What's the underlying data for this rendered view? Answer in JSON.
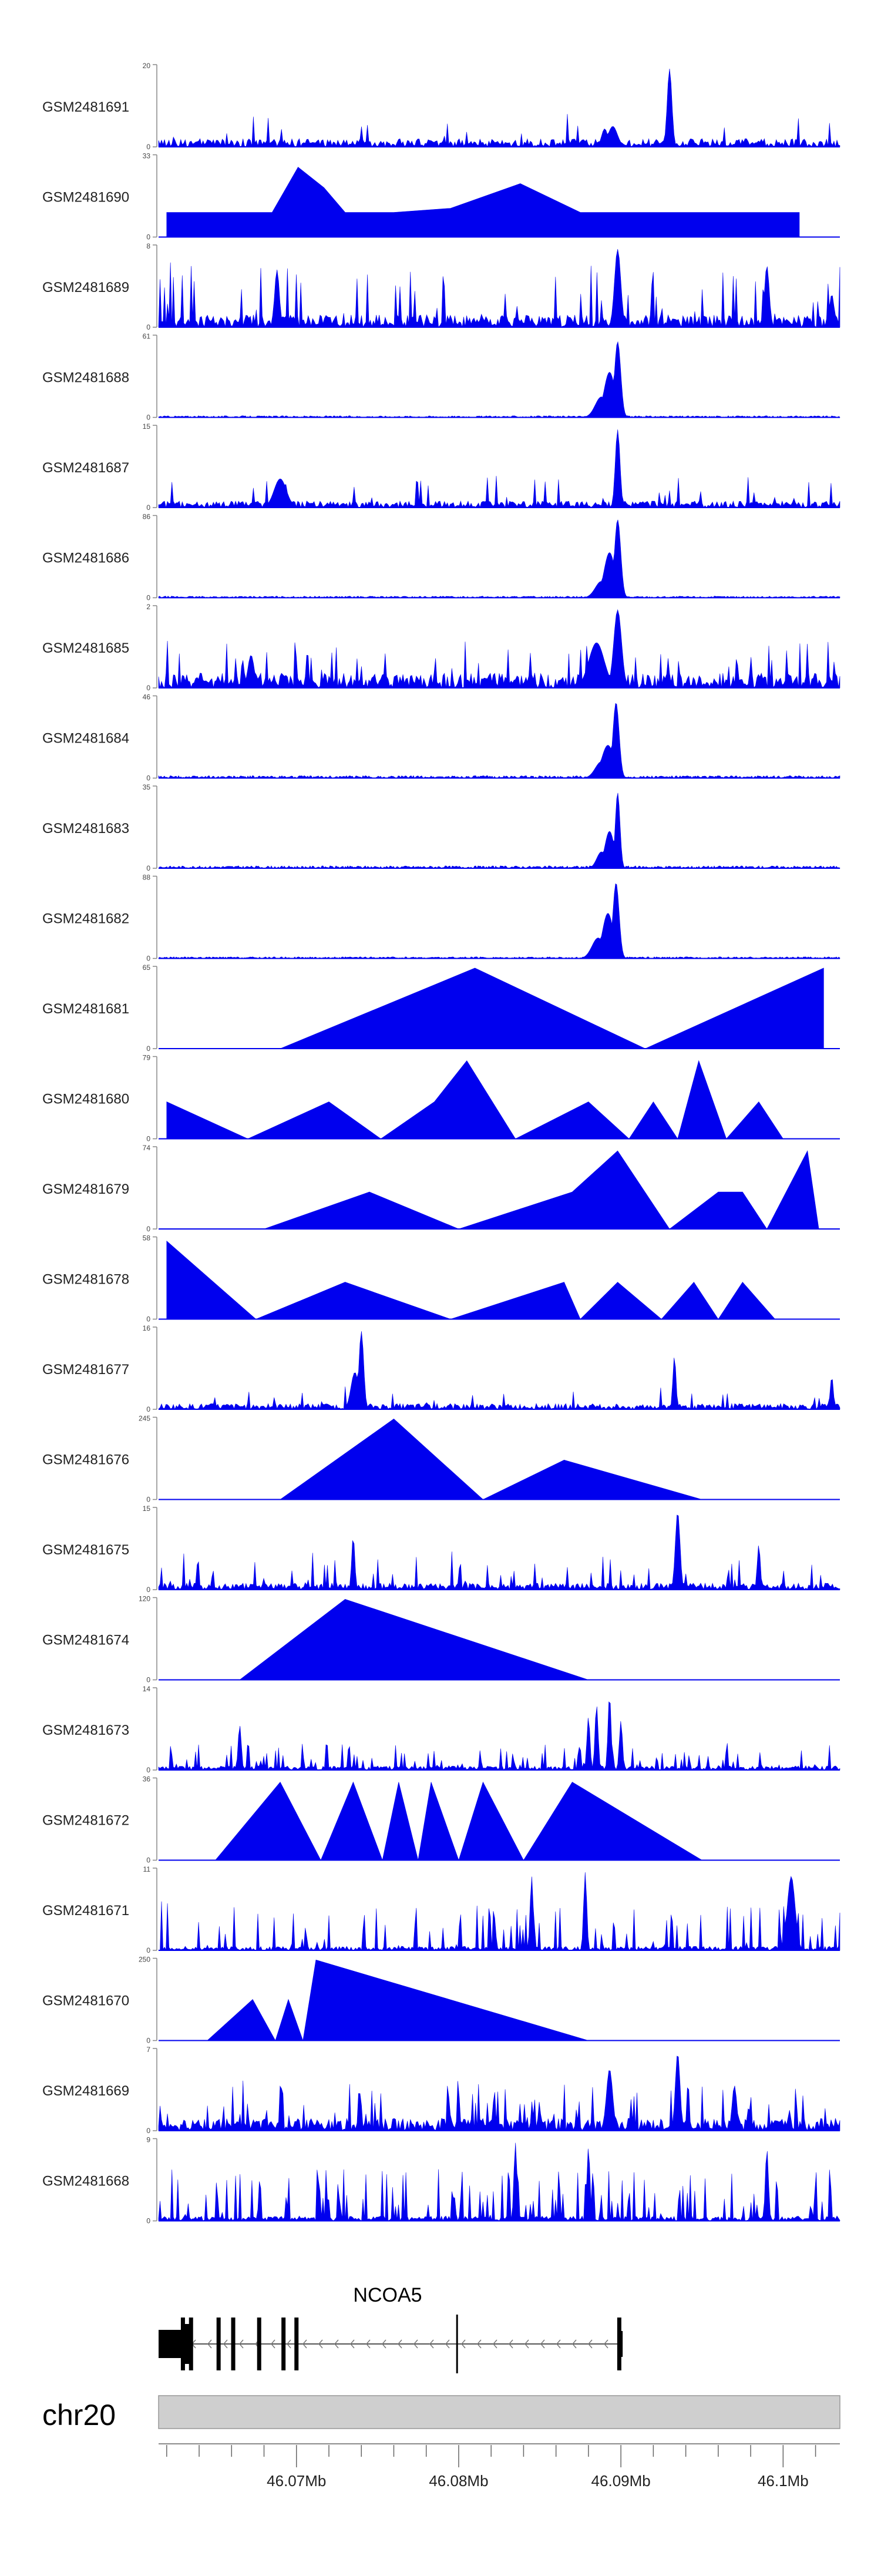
{
  "chart_data": {
    "type": "area",
    "title": "",
    "chromosome": "chr20",
    "xlabel": "",
    "x_range_mb": [
      46.0615,
      46.1035
    ],
    "axis_tick_labels": [
      "46.07Mb",
      "46.08Mb",
      "46.09Mb",
      "46.1Mb"
    ],
    "axis_tick_values": [
      46.07,
      46.08,
      46.09,
      46.1
    ],
    "gene": {
      "name": "NCOA5",
      "strand": "-",
      "start_mb": 46.0615,
      "end_mb": 46.09,
      "exons_mb": [
        46.063,
        46.0635,
        46.0652,
        46.0661,
        46.0677,
        46.0692,
        46.07,
        46.0799,
        46.0899
      ]
    },
    "colors": {
      "signal": "#0000ee",
      "ideogram": "#cfcfcf",
      "axis": "#666666"
    },
    "tracks": [
      {
        "name": "GSM2481691",
        "ymax": "20",
        "ymin": "0",
        "style": "spiky",
        "noise": 0.1,
        "spikeRate": 0.05,
        "spikeMax": 0.35,
        "seed": 91,
        "peaks": [
          [
            46.0895,
            0.25,
            0.0006
          ],
          [
            46.093,
            0.95,
            0.0003
          ],
          [
            46.089,
            0.22,
            0.0004
          ]
        ]
      },
      {
        "name": "GSM2481690",
        "ymax": "33",
        "ymin": "0",
        "style": "tent",
        "seed": 90,
        "apexes": [
          [
            46.062,
            0.3
          ],
          [
            46.0642,
            0.3
          ],
          [
            46.0663,
            0.3
          ],
          [
            46.0685,
            0.3
          ],
          [
            46.0701,
            0.85
          ],
          [
            46.0717,
            0.6
          ],
          [
            46.073,
            0.3
          ],
          [
            46.076,
            0.3
          ],
          [
            46.0795,
            0.35
          ],
          [
            46.0838,
            0.65
          ],
          [
            46.0875,
            0.3
          ],
          [
            46.091,
            0.3
          ],
          [
            46.095,
            0.3
          ],
          [
            46.0985,
            0.3
          ],
          [
            46.101,
            0.3
          ]
        ]
      },
      {
        "name": "GSM2481689",
        "ymax": "8",
        "ymin": "0",
        "style": "spiky",
        "noise": 0.15,
        "spikeRate": 0.1,
        "spikeMax": 0.65,
        "seed": 89,
        "peaks": [
          [
            46.0898,
            0.95,
            0.0004
          ],
          [
            46.099,
            0.75,
            0.0003
          ],
          [
            46.0688,
            0.7,
            0.0003
          ],
          [
            46.103,
            0.4,
            0.0003
          ]
        ]
      },
      {
        "name": "GSM2481688",
        "ymax": "61",
        "ymin": "0",
        "style": "narrow",
        "noise": 0.02,
        "seed": 88,
        "peaks": [
          [
            46.0898,
            0.92,
            0.0004
          ],
          [
            46.0893,
            0.55,
            0.0007
          ],
          [
            46.0888,
            0.25,
            0.0008
          ]
        ]
      },
      {
        "name": "GSM2481687",
        "ymax": "15",
        "ymin": "0",
        "style": "spiky",
        "noise": 0.08,
        "spikeRate": 0.07,
        "spikeMax": 0.35,
        "seed": 87,
        "peaks": [
          [
            46.0898,
            0.95,
            0.0003
          ],
          [
            46.069,
            0.35,
            0.0008
          ]
        ]
      },
      {
        "name": "GSM2481686",
        "ymax": "86",
        "ymin": "0",
        "style": "narrow",
        "noise": 0.02,
        "seed": 86,
        "peaks": [
          [
            46.0898,
            0.95,
            0.0004
          ],
          [
            46.0893,
            0.55,
            0.0007
          ],
          [
            46.0888,
            0.2,
            0.0008
          ]
        ]
      },
      {
        "name": "GSM2481685",
        "ymax": "2",
        "ymin": "0",
        "style": "spiky",
        "noise": 0.18,
        "spikeRate": 0.12,
        "spikeMax": 0.45,
        "seed": 85,
        "peaks": [
          [
            46.0898,
            0.95,
            0.0005
          ],
          [
            46.0885,
            0.55,
            0.001
          ],
          [
            46.0672,
            0.4,
            0.0004
          ]
        ]
      },
      {
        "name": "GSM2481684",
        "ymax": "46",
        "ymin": "0",
        "style": "narrow",
        "noise": 0.03,
        "seed": 84,
        "peaks": [
          [
            46.0897,
            0.92,
            0.0004
          ],
          [
            46.0892,
            0.4,
            0.0008
          ],
          [
            46.0888,
            0.2,
            0.0008
          ]
        ]
      },
      {
        "name": "GSM2481683",
        "ymax": "35",
        "ymin": "0",
        "style": "narrow",
        "noise": 0.03,
        "seed": 83,
        "peaks": [
          [
            46.0898,
            0.92,
            0.0003
          ],
          [
            46.0893,
            0.45,
            0.0006
          ],
          [
            46.0888,
            0.2,
            0.0006
          ]
        ]
      },
      {
        "name": "GSM2481682",
        "ymax": "88",
        "ymin": "0",
        "style": "narrow",
        "noise": 0.02,
        "seed": 82,
        "peaks": [
          [
            46.0897,
            0.92,
            0.0004
          ],
          [
            46.0892,
            0.55,
            0.0007
          ],
          [
            46.0886,
            0.25,
            0.0008
          ]
        ]
      },
      {
        "name": "GSM2481681",
        "ymax": "65",
        "ymin": "0",
        "style": "tent",
        "seed": 81,
        "apexes": [
          [
            46.069,
            0.0
          ],
          [
            46.081,
            0.98
          ],
          [
            46.0915,
            0.0
          ],
          [
            46.1025,
            0.98
          ]
        ]
      },
      {
        "name": "GSM2481680",
        "ymax": "79",
        "ymin": "0",
        "style": "tent",
        "seed": 80,
        "apexes": [
          [
            46.062,
            0.45
          ],
          [
            46.067,
            0.0
          ],
          [
            46.072,
            0.45
          ],
          [
            46.0752,
            0.0
          ],
          [
            46.0785,
            0.45
          ],
          [
            46.0805,
            0.95
          ],
          [
            46.0835,
            0.0
          ],
          [
            46.088,
            0.45
          ],
          [
            46.0905,
            0.0
          ],
          [
            46.092,
            0.45
          ],
          [
            46.0935,
            0.0
          ],
          [
            46.0948,
            0.95
          ],
          [
            46.0965,
            0.0
          ],
          [
            46.0985,
            0.45
          ],
          [
            46.1,
            0.0
          ]
        ]
      },
      {
        "name": "GSM2481679",
        "ymax": "74",
        "ymin": "0",
        "style": "tent",
        "seed": 79,
        "apexes": [
          [
            46.068,
            0.0
          ],
          [
            46.0745,
            0.45
          ],
          [
            46.08,
            0.0
          ],
          [
            46.087,
            0.45
          ],
          [
            46.0898,
            0.95
          ],
          [
            46.093,
            0.0
          ],
          [
            46.096,
            0.45
          ],
          [
            46.0975,
            0.45
          ],
          [
            46.099,
            0.0
          ],
          [
            46.1015,
            0.95
          ],
          [
            46.1022,
            0.0
          ]
        ]
      },
      {
        "name": "GSM2481678",
        "ymax": "58",
        "ymin": "0",
        "style": "tent",
        "seed": 78,
        "apexes": [
          [
            46.062,
            0.95
          ],
          [
            46.0675,
            0.0
          ],
          [
            46.073,
            0.45
          ],
          [
            46.0795,
            0.0
          ],
          [
            46.0865,
            0.45
          ],
          [
            46.0875,
            0.0
          ],
          [
            46.0898,
            0.45
          ],
          [
            46.0925,
            0.0
          ],
          [
            46.0945,
            0.45
          ],
          [
            46.096,
            0.0
          ],
          [
            46.0975,
            0.45
          ],
          [
            46.0995,
            0.0
          ]
        ]
      },
      {
        "name": "GSM2481677",
        "ymax": "16",
        "ymin": "0",
        "style": "spiky",
        "noise": 0.07,
        "spikeRate": 0.05,
        "spikeMax": 0.25,
        "seed": 77,
        "peaks": [
          [
            46.074,
            0.95,
            0.0003
          ],
          [
            46.0736,
            0.45,
            0.0005
          ],
          [
            46.0933,
            0.65,
            0.0002
          ],
          [
            46.103,
            0.4,
            0.0002
          ]
        ]
      },
      {
        "name": "GSM2481676",
        "ymax": "245",
        "ymin": "0",
        "style": "tent",
        "seed": 76,
        "apexes": [
          [
            46.069,
            0.0
          ],
          [
            46.076,
            0.98
          ],
          [
            46.0815,
            0.0
          ],
          [
            46.0865,
            0.48
          ],
          [
            46.095,
            0.0
          ]
        ]
      },
      {
        "name": "GSM2481675",
        "ymax": "15",
        "ymin": "0",
        "style": "spiky",
        "noise": 0.08,
        "spikeRate": 0.14,
        "spikeMax": 0.4,
        "seed": 75,
        "peaks": [
          [
            46.0935,
            0.95,
            0.0003
          ],
          [
            46.0735,
            0.65,
            0.0002
          ],
          [
            46.0985,
            0.55,
            0.0002
          ]
        ]
      },
      {
        "name": "GSM2481674",
        "ymax": "120",
        "ymin": "0",
        "style": "tent",
        "seed": 74,
        "apexes": [
          [
            46.0665,
            0.0
          ],
          [
            46.073,
            0.98
          ],
          [
            46.088,
            0.0
          ]
        ]
      },
      {
        "name": "GSM2481673",
        "ymax": "14",
        "ymin": "0",
        "style": "spiky",
        "noise": 0.05,
        "spikeRate": 0.22,
        "spikeMax": 0.3,
        "seed": 73,
        "peaks": [
          [
            46.0885,
            0.8,
            0.0002
          ],
          [
            46.0893,
            0.92,
            0.0002
          ],
          [
            46.088,
            0.65,
            0.0002
          ],
          [
            46.0665,
            0.55,
            0.0002
          ],
          [
            46.09,
            0.6,
            0.0002
          ]
        ]
      },
      {
        "name": "GSM2481672",
        "ymax": "36",
        "ymin": "0",
        "style": "tent",
        "seed": 72,
        "apexes": [
          [
            46.065,
            0.0
          ],
          [
            46.069,
            0.95
          ],
          [
            46.0715,
            0.0
          ],
          [
            46.0735,
            0.95
          ],
          [
            46.0753,
            0.0
          ],
          [
            46.0763,
            0.95
          ],
          [
            46.0775,
            0.0
          ],
          [
            46.0783,
            0.95
          ],
          [
            46.08,
            0.0
          ],
          [
            46.0815,
            0.95
          ],
          [
            46.084,
            0.0
          ],
          [
            46.087,
            0.95
          ],
          [
            46.095,
            0.0
          ]
        ]
      },
      {
        "name": "GSM2481671",
        "ymax": "11",
        "ymin": "0",
        "style": "spiky",
        "noise": 0.05,
        "spikeRate": 0.2,
        "spikeMax": 0.55,
        "seed": 71,
        "peaks": [
          [
            46.0878,
            0.95,
            0.0002
          ],
          [
            46.0845,
            0.9,
            0.0002
          ],
          [
            46.1005,
            0.9,
            0.0005
          ]
        ]
      },
      {
        "name": "GSM2481670",
        "ymax": "250",
        "ymin": "0",
        "style": "tent",
        "seed": 70,
        "apexes": [
          [
            46.0645,
            0.0
          ],
          [
            46.0673,
            0.5
          ],
          [
            46.0687,
            0.0
          ],
          [
            46.0695,
            0.5
          ],
          [
            46.0704,
            0.0
          ],
          [
            46.0712,
            0.98
          ],
          [
            46.088,
            0.0
          ]
        ]
      },
      {
        "name": "GSM2481669",
        "ymax": "7",
        "ymin": "0",
        "style": "spiky",
        "noise": 0.15,
        "spikeRate": 0.14,
        "spikeMax": 0.5,
        "seed": 69,
        "peaks": [
          [
            46.0935,
            0.95,
            0.0003
          ],
          [
            46.0893,
            0.75,
            0.0004
          ],
          [
            46.097,
            0.55,
            0.0003
          ]
        ]
      },
      {
        "name": "GSM2481668",
        "ymax": "9",
        "ymin": "0",
        "style": "spiky",
        "noise": 0.06,
        "spikeRate": 0.22,
        "spikeMax": 0.6,
        "seed": 68,
        "peaks": [
          [
            46.0835,
            0.95,
            0.0002
          ],
          [
            46.088,
            0.9,
            0.0002
          ],
          [
            46.099,
            0.88,
            0.0002
          ]
        ]
      }
    ]
  }
}
